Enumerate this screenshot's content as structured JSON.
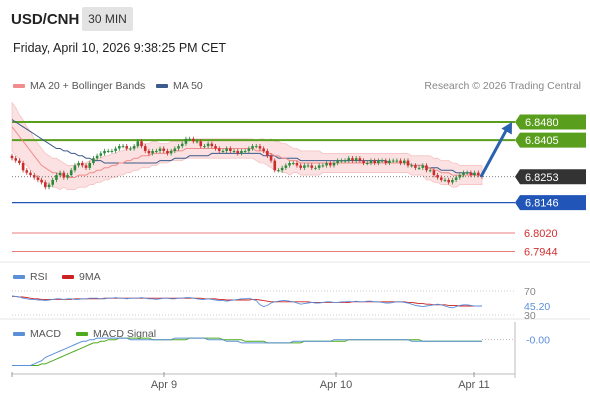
{
  "header": {
    "symbol": "USD/CNH",
    "timeframe": "30 MIN",
    "datetime": "Friday, April 10, 2026 9:38:25 PM CET"
  },
  "legend": {
    "ma20": "MA 20 + Bollinger Bands",
    "ma50": "MA 50",
    "source": "Research © 2026 Trading Central",
    "rsi": "RSI",
    "rsi_ma": "9MA",
    "macd": "MACD",
    "macd_signal": "MACD Signal"
  },
  "colors": {
    "resistance": "#5a9e1e",
    "support": "#2156b8",
    "pivot_low": "#e05050",
    "candle_up": "#2a8a3a",
    "candle_down": "#cc2b2b",
    "band": "#f7c8c8",
    "ma20": "#f28c8c",
    "ma50": "#3c5a8c",
    "rsi": "#5b8fd8",
    "rsi_ma": "#cc2222",
    "macd": "#5b8fd8",
    "macd_signal": "#4caa1c",
    "arrow": "#2a62b0"
  },
  "chart_data": [
    {
      "type": "candlestick",
      "name": "price",
      "ylim": [
        6.79,
        6.86
      ],
      "x_ticks": [
        "Apr 9",
        "Apr 10",
        "Apr 11"
      ],
      "levels": [
        {
          "label": "6.8480",
          "value": 6.848,
          "kind": "resistance"
        },
        {
          "label": "6.8405",
          "value": 6.8405,
          "kind": "resistance"
        },
        {
          "label": "6.8253",
          "value": 6.8253,
          "kind": "last"
        },
        {
          "label": "6.8146",
          "value": 6.8146,
          "kind": "support"
        },
        {
          "label": "6.8020",
          "value": 6.802,
          "kind": "pivot"
        },
        {
          "label": "6.7944",
          "value": 6.7944,
          "kind": "pivot"
        }
      ],
      "close": [
        6.833,
        6.832,
        6.831,
        6.828,
        6.827,
        6.826,
        6.825,
        6.824,
        6.823,
        6.821,
        6.822,
        6.824,
        6.826,
        6.827,
        6.825,
        6.826,
        6.828,
        6.83,
        6.831,
        6.83,
        6.829,
        6.831,
        6.833,
        6.834,
        6.835,
        6.836,
        6.836,
        6.836,
        6.837,
        6.838,
        6.838,
        6.837,
        6.837,
        6.838,
        6.84,
        6.838,
        6.836,
        6.835,
        6.836,
        6.836,
        6.837,
        6.836,
        6.835,
        6.836,
        6.837,
        6.838,
        6.839,
        6.841,
        6.841,
        6.84,
        6.84,
        6.838,
        6.838,
        6.839,
        6.838,
        6.837,
        6.836,
        6.836,
        6.837,
        6.836,
        6.836,
        6.835,
        6.836,
        6.836,
        6.837,
        6.838,
        6.838,
        6.837,
        6.836,
        6.834,
        6.832,
        6.828,
        6.828,
        6.829,
        6.83,
        6.831,
        6.831,
        6.83,
        6.829,
        6.83,
        6.83,
        6.829,
        6.829,
        6.83,
        6.83,
        6.831,
        6.83,
        6.831,
        6.832,
        6.832,
        6.832,
        6.833,
        6.832,
        6.833,
        6.832,
        6.831,
        6.831,
        6.832,
        6.831,
        6.832,
        6.832,
        6.831,
        6.832,
        6.832,
        6.832,
        6.831,
        6.832,
        6.83,
        6.83,
        6.829,
        6.829,
        6.83,
        6.828,
        6.828,
        6.826,
        6.825,
        6.824,
        6.824,
        6.823,
        6.824,
        6.825,
        6.826,
        6.827,
        6.827,
        6.826,
        6.827,
        6.826,
        6.8253
      ],
      "ma20": [
        6.846,
        6.844,
        6.842,
        6.84,
        6.838,
        6.836,
        6.834,
        6.832,
        6.83,
        6.829,
        6.828,
        6.827,
        6.827,
        6.826,
        6.826,
        6.825,
        6.825,
        6.825,
        6.826,
        6.826,
        6.826,
        6.827,
        6.827,
        6.828,
        6.828,
        6.829,
        6.829,
        6.83,
        6.83,
        6.831,
        6.831,
        6.832,
        6.832,
        6.833,
        6.833,
        6.834,
        6.834,
        6.834,
        6.835,
        6.835,
        6.835,
        6.835,
        6.835,
        6.836,
        6.836,
        6.836,
        6.836,
        6.837,
        6.837,
        6.837,
        6.837,
        6.837,
        6.837,
        6.837,
        6.837,
        6.837,
        6.837,
        6.837,
        6.837,
        6.837,
        6.837,
        6.837,
        6.837,
        6.837,
        6.837,
        6.837,
        6.836,
        6.836,
        6.836,
        6.835,
        6.835,
        6.834,
        6.834,
        6.833,
        6.833,
        6.832,
        6.832,
        6.832,
        6.831,
        6.831,
        6.831,
        6.831,
        6.831,
        6.831,
        6.831,
        6.831,
        6.831,
        6.831,
        6.831,
        6.831,
        6.831,
        6.831,
        6.831,
        6.831,
        6.831,
        6.831,
        6.831,
        6.831,
        6.831,
        6.831,
        6.831,
        6.831,
        6.831,
        6.831,
        6.831,
        6.831,
        6.831,
        6.831,
        6.83,
        6.83,
        6.83,
        6.83,
        6.829,
        6.829,
        6.828,
        6.828,
        6.827,
        6.827,
        6.827,
        6.826,
        6.826,
        6.826,
        6.826,
        6.826,
        6.826,
        6.826,
        6.826,
        6.826
      ],
      "ma50": [
        6.849,
        6.848,
        6.847,
        6.846,
        6.845,
        6.844,
        6.843,
        6.842,
        6.841,
        6.84,
        6.839,
        6.838,
        6.837,
        6.837,
        6.836,
        6.836,
        6.835,
        6.835,
        6.834,
        6.834,
        6.833,
        6.833,
        6.832,
        6.832,
        6.832,
        6.831,
        6.831,
        6.831,
        6.831,
        6.831,
        6.831,
        6.831,
        6.831,
        6.831,
        6.831,
        6.831,
        6.831,
        6.831,
        6.831,
        6.831,
        6.832,
        6.832,
        6.832,
        6.832,
        6.833,
        6.833,
        6.833,
        6.833,
        6.834,
        6.834,
        6.834,
        6.834,
        6.834,
        6.834,
        6.835,
        6.835,
        6.835,
        6.835,
        6.835,
        6.835,
        6.835,
        6.835,
        6.835,
        6.835,
        6.835,
        6.835,
        6.835,
        6.835,
        6.834,
        6.834,
        6.834,
        6.834,
        6.833,
        6.833,
        6.833,
        6.833,
        6.833,
        6.833,
        6.832,
        6.832,
        6.832,
        6.832,
        6.832,
        6.832,
        6.832,
        6.832,
        6.832,
        6.832,
        6.832,
        6.832,
        6.832,
        6.832,
        6.832,
        6.832,
        6.832,
        6.832,
        6.832,
        6.832,
        6.832,
        6.832,
        6.832,
        6.832,
        6.831,
        6.831,
        6.831,
        6.831,
        6.831,
        6.831,
        6.83,
        6.83,
        6.83,
        6.83,
        6.829,
        6.829,
        6.829,
        6.829,
        6.828,
        6.828,
        6.828,
        6.828,
        6.827,
        6.827,
        6.827,
        6.827,
        6.827,
        6.826,
        6.826,
        6.826
      ],
      "band_width": [
        0.01,
        0.01,
        0.009,
        0.009,
        0.008,
        0.008,
        0.007,
        0.007,
        0.007,
        0.006,
        0.006,
        0.006,
        0.006,
        0.006,
        0.005,
        0.005,
        0.005,
        0.005,
        0.005,
        0.005,
        0.005,
        0.005,
        0.005,
        0.005,
        0.005,
        0.005,
        0.005,
        0.005,
        0.005,
        0.005,
        0.005,
        0.005,
        0.005,
        0.005,
        0.005,
        0.005,
        0.005,
        0.005,
        0.005,
        0.005,
        0.004,
        0.004,
        0.004,
        0.004,
        0.004,
        0.004,
        0.004,
        0.004,
        0.004,
        0.004,
        0.004,
        0.004,
        0.004,
        0.004,
        0.004,
        0.004,
        0.004,
        0.004,
        0.004,
        0.004,
        0.004,
        0.004,
        0.004,
        0.004,
        0.004,
        0.004,
        0.004,
        0.005,
        0.005,
        0.005,
        0.006,
        0.006,
        0.006,
        0.006,
        0.006,
        0.006,
        0.005,
        0.005,
        0.005,
        0.005,
        0.005,
        0.005,
        0.005,
        0.005,
        0.004,
        0.004,
        0.004,
        0.004,
        0.004,
        0.004,
        0.004,
        0.004,
        0.004,
        0.004,
        0.004,
        0.004,
        0.004,
        0.004,
        0.004,
        0.004,
        0.004,
        0.004,
        0.004,
        0.004,
        0.004,
        0.004,
        0.004,
        0.004,
        0.004,
        0.004,
        0.004,
        0.004,
        0.005,
        0.005,
        0.005,
        0.005,
        0.005,
        0.005,
        0.005,
        0.005,
        0.005,
        0.004,
        0.004,
        0.004,
        0.004,
        0.004,
        0.004,
        0.004
      ],
      "forecast_arrow": {
        "from": 6.8253,
        "to": 6.848
      }
    },
    {
      "type": "line",
      "name": "RSI",
      "ylim": [
        25,
        80
      ],
      "ticks": [
        {
          "label": "70",
          "value": 70
        },
        {
          "label": "45.20",
          "value": 45.2
        },
        {
          "label": "30",
          "value": 30
        }
      ],
      "rsi": [
        62,
        61,
        60,
        58,
        57,
        56,
        56,
        55,
        55,
        54,
        55,
        56,
        57,
        57,
        56,
        57,
        57,
        56,
        56,
        57,
        57,
        58,
        58,
        58,
        57,
        57,
        58,
        58,
        59,
        58,
        58,
        57,
        58,
        58,
        58,
        59,
        58,
        57,
        57,
        56,
        57,
        58,
        58,
        57,
        57,
        58,
        58,
        59,
        59,
        58,
        57,
        56,
        56,
        57,
        56,
        55,
        54,
        54,
        53,
        54,
        55,
        56,
        57,
        57,
        58,
        56,
        54,
        47,
        44,
        46,
        50,
        52,
        53,
        54,
        54,
        53,
        52,
        50,
        48,
        49,
        50,
        51,
        50,
        50,
        51,
        52,
        52,
        51,
        51,
        52,
        52,
        53,
        52,
        53,
        52,
        52,
        53,
        53,
        52,
        52,
        51,
        50,
        50,
        51,
        52,
        52,
        51,
        50,
        48,
        46,
        45,
        44,
        45,
        46,
        47,
        48,
        47,
        45,
        43,
        42,
        44,
        46,
        47,
        47,
        46,
        45,
        45,
        45.2
      ],
      "ma": [
        61,
        61,
        60,
        60,
        59,
        58,
        57,
        57,
        56,
        56,
        56,
        56,
        56,
        56,
        56,
        56,
        56,
        57,
        57,
        57,
        57,
        57,
        57,
        57,
        57,
        58,
        58,
        58,
        58,
        58,
        58,
        58,
        58,
        58,
        58,
        58,
        58,
        58,
        58,
        58,
        58,
        58,
        58,
        58,
        58,
        58,
        58,
        58,
        58,
        58,
        58,
        58,
        57,
        57,
        57,
        57,
        56,
        56,
        55,
        55,
        55,
        55,
        55,
        55,
        55,
        56,
        56,
        55,
        54,
        53,
        52,
        52,
        52,
        52,
        52,
        52,
        52,
        52,
        52,
        52,
        52,
        51,
        51,
        51,
        51,
        51,
        51,
        51,
        51,
        51,
        51,
        51,
        52,
        52,
        52,
        52,
        52,
        52,
        52,
        52,
        52,
        52,
        52,
        52,
        52,
        52,
        52,
        51,
        51,
        50,
        49,
        49,
        48,
        48,
        47,
        47,
        47,
        47,
        46,
        46,
        46,
        45,
        45,
        45,
        45,
        45,
        45,
        45
      ]
    },
    {
      "type": "line",
      "name": "MACD",
      "ylim": [
        -0.02,
        0.006
      ],
      "ticks": [
        {
          "label": "-0.00",
          "value": 0
        }
      ],
      "macd": [
        -0.016,
        -0.016,
        -0.016,
        -0.016,
        -0.016,
        -0.016,
        -0.015,
        -0.014,
        -0.013,
        -0.011,
        -0.01,
        -0.009,
        -0.008,
        -0.007,
        -0.006,
        -0.005,
        -0.004,
        -0.003,
        -0.002,
        -0.001,
        -0.001,
        0.0,
        0.0,
        0.001,
        0.001,
        0.001,
        0.001,
        0.001,
        0.001,
        0.001,
        0.001,
        0.001,
        0.0,
        0.0,
        0.0,
        0.0,
        0.0,
        0.0,
        0.0,
        0.0,
        0.0,
        0.0,
        0.0,
        0.0,
        0.001,
        0.001,
        0.001,
        0.001,
        0.001,
        0.001,
        0.001,
        0.001,
        0.001,
        0.0,
        0.0,
        0.0,
        0.0,
        0.0,
        -0.001,
        -0.001,
        -0.001,
        -0.001,
        -0.002,
        -0.002,
        -0.002,
        -0.002,
        -0.002,
        -0.002,
        -0.002,
        -0.002,
        -0.002,
        -0.002,
        -0.002,
        -0.002,
        -0.002,
        -0.002,
        -0.001,
        -0.001,
        -0.001,
        -0.001,
        -0.001,
        -0.001,
        -0.001,
        -0.001,
        -0.001,
        -0.001,
        -0.001,
        0.0,
        0.0,
        0.0,
        0.0,
        0.0,
        0.0,
        0.0,
        0.0,
        0.0,
        0.0,
        0.0,
        0.0,
        0.0,
        0.0,
        0.0,
        0.0,
        0.0,
        0.0,
        0.0,
        0.0,
        0.0,
        -0.001,
        -0.001,
        -0.001,
        -0.001,
        -0.001,
        -0.001,
        -0.001,
        -0.001,
        -0.001,
        -0.001,
        -0.001,
        -0.001,
        -0.001,
        -0.001,
        -0.001,
        -0.001,
        -0.001,
        -0.001,
        -0.001,
        -0.001
      ],
      "signal": [
        -0.016,
        -0.016,
        -0.016,
        -0.016,
        -0.016,
        -0.016,
        -0.016,
        -0.016,
        -0.015,
        -0.015,
        -0.014,
        -0.013,
        -0.012,
        -0.011,
        -0.01,
        -0.009,
        -0.008,
        -0.007,
        -0.006,
        -0.005,
        -0.004,
        -0.003,
        -0.002,
        -0.002,
        -0.001,
        -0.001,
        0.0,
        0.0,
        0.0,
        0.001,
        0.001,
        0.001,
        0.001,
        0.001,
        0.001,
        0.001,
        0.001,
        0.001,
        0.0,
        0.0,
        0.0,
        0.0,
        0.0,
        0.0,
        0.0,
        0.0,
        0.0,
        0.0,
        0.001,
        0.001,
        0.001,
        0.001,
        0.001,
        0.001,
        0.001,
        0.001,
        0.001,
        0.0,
        0.0,
        0.0,
        0.0,
        0.0,
        0.0,
        -0.001,
        -0.001,
        -0.001,
        -0.001,
        -0.001,
        -0.001,
        -0.002,
        -0.002,
        -0.002,
        -0.002,
        -0.002,
        -0.002,
        -0.002,
        -0.002,
        -0.002,
        -0.002,
        -0.001,
        -0.001,
        -0.001,
        -0.001,
        -0.001,
        -0.001,
        -0.001,
        -0.001,
        -0.001,
        -0.001,
        -0.001,
        -0.001,
        0.0,
        0.0,
        0.0,
        0.0,
        0.0,
        0.0,
        0.0,
        0.0,
        0.0,
        0.0,
        0.0,
        0.0,
        0.0,
        0.0,
        0.0,
        0.0,
        0.0,
        0.0,
        0.0,
        0.0,
        -0.001,
        -0.001,
        -0.001,
        -0.001,
        -0.001,
        -0.001,
        -0.001,
        -0.001,
        -0.001,
        -0.001,
        -0.001,
        -0.001,
        -0.001,
        -0.001,
        -0.001,
        -0.001,
        -0.001
      ]
    }
  ]
}
